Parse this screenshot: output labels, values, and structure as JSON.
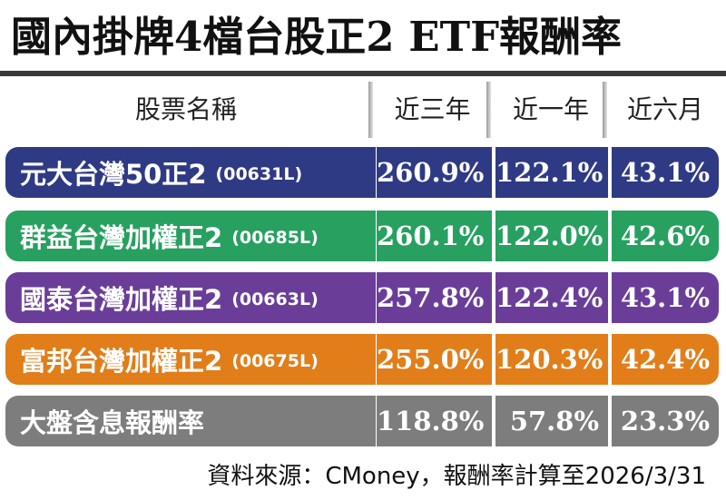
{
  "title": "國內掛牌4檔台股正2 ETF報酬率",
  "header": {
    "name_col": "股票名稱",
    "col1": "近三年",
    "col2": "近一年",
    "col3": "近六月"
  },
  "colors": {
    "row1": "#2f3a85",
    "row2": "#27a060",
    "row3": "#6a3e98",
    "row4": "#e17e1a",
    "row5": "#7d7d7d"
  },
  "rows": [
    {
      "name": "元大台灣50正2",
      "code": "(00631L)",
      "y3": "260.9%",
      "y1": "122.1%",
      "m6": "43.1%"
    },
    {
      "name": "群益台灣加權正2",
      "code": "(00685L)",
      "y3": "260.1%",
      "y1": "122.0%",
      "m6": "42.6%"
    },
    {
      "name": "國泰台灣加權正2",
      "code": "(00663L)",
      "y3": "257.8%",
      "y1": "122.4%",
      "m6": "43.1%"
    },
    {
      "name": "富邦台灣加權正2",
      "code": "(00675L)",
      "y3": "255.0%",
      "y1": "120.3%",
      "m6": "42.4%"
    },
    {
      "name": "大盤含息報酬率",
      "code": "",
      "y3": "118.8%",
      "y1": "57.8%",
      "m6": "23.3%"
    }
  ],
  "source": "資料來源：CMoney，報酬率計算至2026/3/31",
  "chart_data": {
    "type": "table",
    "title": "國內掛牌4檔台股正2 ETF報酬率",
    "columns": [
      "股票名稱",
      "近三年",
      "近一年",
      "近六月"
    ],
    "rows": [
      [
        "元大台灣50正2 (00631L)",
        "260.9%",
        "122.1%",
        "43.1%"
      ],
      [
        "群益台灣加權正2 (00685L)",
        "260.1%",
        "122.0%",
        "42.6%"
      ],
      [
        "國泰台灣加權正2 (00663L)",
        "257.8%",
        "122.4%",
        "43.1%"
      ],
      [
        "富邦台灣加權正2 (00675L)",
        "255.0%",
        "120.3%",
        "42.4%"
      ],
      [
        "大盤含息報酬率",
        "118.8%",
        "57.8%",
        "23.3%"
      ]
    ]
  }
}
